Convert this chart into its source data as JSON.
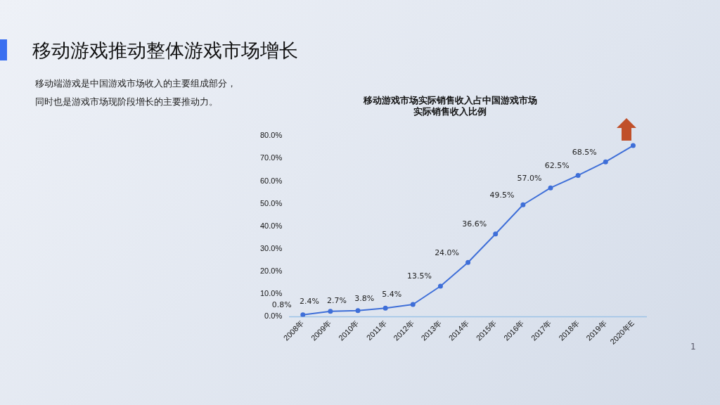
{
  "chart_data": {
    "type": "line",
    "title": [
      "移动游戏市场实际销售收入占中国游戏市场",
      "实际销售收入比例"
    ],
    "annotations": [
      "移动游戏推动整体游戏市场增长",
      "移动端游戏是中国游戏市场收入的主要组成部分，",
      "同时也是游戏市场现阶段增长的主要推动力。",
      "1"
    ],
    "categories": [
      "2008年",
      "2009年",
      "2010年",
      "2011年",
      "2012年",
      "2013年",
      "2014年",
      "2015年",
      "2016年",
      "2017年",
      "2018年",
      "2019年",
      "2020年E"
    ],
    "series": [
      {
        "color": "#3f6fd8",
        "values": [
          0.8,
          2.4,
          2.7,
          3.8,
          5.4,
          13.5,
          24.0,
          36.6,
          49.5,
          57.0,
          62.5,
          68.5,
          75.7
        ],
        "value_labels": [
          "0.8%",
          "2.4%",
          "2.7%",
          "3.8%",
          "5.4%",
          "13.5%",
          "24.0%",
          "36.6%",
          "49.5%",
          "57.0%",
          "62.5%",
          "68.5%",
          null
        ]
      }
    ],
    "ylim": [
      0,
      80
    ],
    "yticks": [
      {
        "value": 0,
        "label": "0.0%"
      },
      {
        "value": 10,
        "label": "10.0%"
      },
      {
        "value": 20,
        "label": "20.0%"
      },
      {
        "value": 30,
        "label": "30.0%"
      },
      {
        "value": 40,
        "label": "40.0%"
      },
      {
        "value": 50,
        "label": "50.0%"
      },
      {
        "value": 60,
        "label": "60.0%"
      },
      {
        "value": 70,
        "label": "70.0%"
      },
      {
        "value": 80,
        "label": "80.0%"
      }
    ],
    "grid": false,
    "legend": false,
    "marker": "circle",
    "line_style": "solid"
  }
}
